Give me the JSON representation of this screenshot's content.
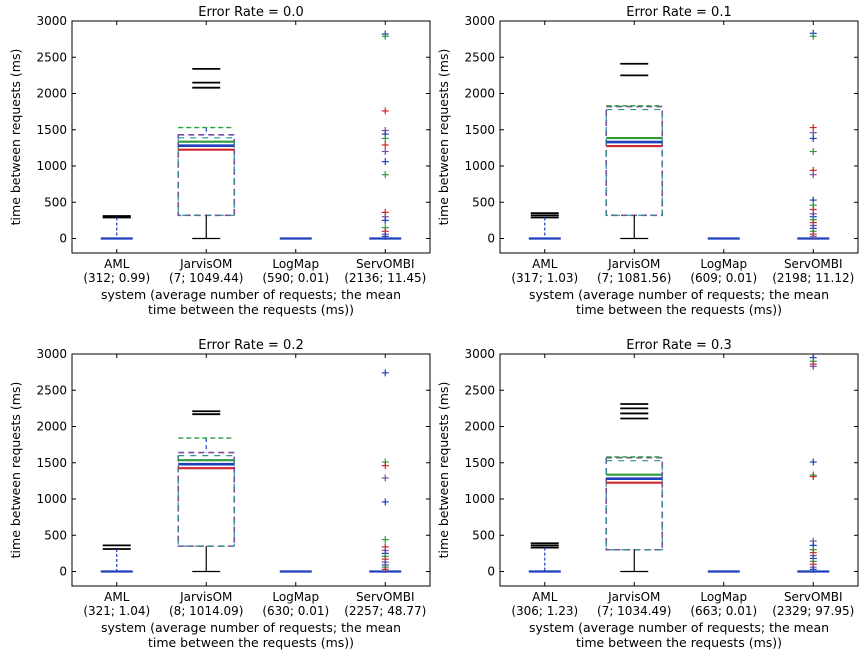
{
  "chart_data": [
    {
      "type": "box",
      "title": "Error Rate = 0.0",
      "ylabel": "time between requests (ms)",
      "xlabel": [
        "system (average number of requests; the mean",
        "time between the requests (ms))"
      ],
      "ylim": [
        -200,
        3000
      ],
      "yticks": [
        0,
        500,
        1000,
        1500,
        2000,
        2500,
        3000
      ],
      "categories": [
        {
          "name": "AML",
          "stats": "(312; 0.99)"
        },
        {
          "name": "JarvisOM",
          "stats": "(7; 1049.44)"
        },
        {
          "name": "LogMap",
          "stats": "(590; 0.01)"
        },
        {
          "name": "ServOMBI",
          "stats": "(2136; 11.45)"
        }
      ],
      "boxes": [
        {
          "q1": 0,
          "median": 0,
          "q3": 0,
          "whisker_low": 0,
          "whisker_high": 0,
          "caps": [
            310,
            300,
            290
          ],
          "fliers": []
        },
        {
          "q1": 320,
          "median": 1280,
          "q3": 1430,
          "whisker_low": 0,
          "whisker_high": 1530,
          "caps": [
            2340,
            2150,
            2080
          ],
          "fliers": []
        },
        {
          "q1": 0,
          "median": 0,
          "q3": 0,
          "whisker_low": 0,
          "whisker_high": 0,
          "caps": [],
          "fliers": []
        },
        {
          "q1": 0,
          "median": 0,
          "q3": 0,
          "whisker_low": 0,
          "whisker_high": 0,
          "caps": [],
          "fliers": [
            2820,
            2790,
            1760,
            1490,
            1440,
            1380,
            1290,
            1200,
            1060,
            880,
            360,
            300,
            250,
            150,
            100,
            60,
            30
          ]
        }
      ]
    },
    {
      "type": "box",
      "title": "Error Rate = 0.1",
      "ylabel": "time between requests (ms)",
      "xlabel": [
        "system (average number of requests; the mean",
        "time between the requests (ms))"
      ],
      "ylim": [
        -200,
        3000
      ],
      "yticks": [
        0,
        500,
        1000,
        1500,
        2000,
        2500,
        3000
      ],
      "categories": [
        {
          "name": "AML",
          "stats": "(317; 1.03)"
        },
        {
          "name": "JarvisOM",
          "stats": "(7; 1081.56)"
        },
        {
          "name": "LogMap",
          "stats": "(609; 0.01)"
        },
        {
          "name": "ServOMBI",
          "stats": "(2198; 11.12)"
        }
      ],
      "boxes": [
        {
          "q1": 0,
          "median": 0,
          "q3": 0,
          "whisker_low": 0,
          "whisker_high": 0,
          "caps": [
            350,
            320,
            290
          ],
          "fliers": []
        },
        {
          "q1": 320,
          "median": 1330,
          "q3": 1820,
          "whisker_low": 0,
          "whisker_high": 1830,
          "caps": [
            2410,
            2250
          ],
          "fliers": []
        },
        {
          "q1": 0,
          "median": 0,
          "q3": 0,
          "whisker_low": 0,
          "whisker_high": 0,
          "caps": [],
          "fliers": []
        },
        {
          "q1": 0,
          "median": 0,
          "q3": 0,
          "whisker_low": 0,
          "whisker_high": 0,
          "caps": [],
          "fliers": [
            2830,
            2790,
            1530,
            1460,
            1380,
            1200,
            940,
            880,
            530,
            460,
            400,
            340,
            300,
            260,
            220,
            180,
            140,
            100,
            60,
            30
          ]
        }
      ]
    },
    {
      "type": "box",
      "title": "Error Rate = 0.2",
      "ylabel": "time between requests (ms)",
      "xlabel": [
        "system (average number of requests; the mean",
        "time between the requests (ms))"
      ],
      "ylim": [
        -200,
        3000
      ],
      "yticks": [
        0,
        500,
        1000,
        1500,
        2000,
        2500,
        3000
      ],
      "categories": [
        {
          "name": "AML",
          "stats": "(321; 1.04)"
        },
        {
          "name": "JarvisOM",
          "stats": "(8; 1014.09)"
        },
        {
          "name": "LogMap",
          "stats": "(630; 0.01)"
        },
        {
          "name": "ServOMBI",
          "stats": "(2257; 48.77)"
        }
      ],
      "boxes": [
        {
          "q1": 0,
          "median": 0,
          "q3": 0,
          "whisker_low": 0,
          "whisker_high": 0,
          "caps": [
            360,
            310
          ],
          "fliers": []
        },
        {
          "q1": 350,
          "median": 1480,
          "q3": 1640,
          "whisker_low": 0,
          "whisker_high": 1840,
          "caps": [
            2210,
            2170
          ],
          "fliers": []
        },
        {
          "q1": 0,
          "median": 0,
          "q3": 0,
          "whisker_low": 0,
          "whisker_high": 0,
          "caps": [],
          "fliers": []
        },
        {
          "q1": 0,
          "median": 0,
          "q3": 0,
          "whisker_low": 0,
          "whisker_high": 0,
          "caps": [],
          "fliers": [
            2740,
            1510,
            1460,
            1290,
            960,
            440,
            340,
            290,
            250,
            210,
            170,
            130,
            90,
            60,
            30
          ]
        }
      ]
    },
    {
      "type": "box",
      "title": "Error Rate = 0.3",
      "ylabel": "time between requests (ms)",
      "xlabel": [
        "system (average number of requests; the mean",
        "time between the requests (ms))"
      ],
      "ylim": [
        -200,
        3000
      ],
      "yticks": [
        0,
        500,
        1000,
        1500,
        2000,
        2500,
        3000
      ],
      "categories": [
        {
          "name": "AML",
          "stats": "(306; 1.23)"
        },
        {
          "name": "JarvisOM",
          "stats": "(7; 1034.49)"
        },
        {
          "name": "LogMap",
          "stats": "(663; 0.01)"
        },
        {
          "name": "ServOMBI",
          "stats": "(2329; 97.95)"
        }
      ],
      "boxes": [
        {
          "q1": 0,
          "median": 0,
          "q3": 0,
          "whisker_low": 0,
          "whisker_high": 0,
          "caps": [
            390,
            360,
            330
          ],
          "fliers": []
        },
        {
          "q1": 300,
          "median": 1280,
          "q3": 1570,
          "whisker_low": 0,
          "whisker_high": 1580,
          "caps": [
            2310,
            2250,
            2180,
            2110
          ],
          "fliers": []
        },
        {
          "q1": 0,
          "median": 0,
          "q3": 0,
          "whisker_low": 0,
          "whisker_high": 0,
          "caps": [],
          "fliers": []
        },
        {
          "q1": 0,
          "median": 0,
          "q3": 0,
          "whisker_low": 0,
          "whisker_high": 0,
          "caps": [],
          "fliers": [
            2950,
            2900,
            2860,
            2830,
            1510,
            1330,
            1310,
            420,
            360,
            300,
            260,
            220,
            180,
            140,
            100,
            60,
            30
          ]
        }
      ]
    }
  ],
  "colors": {
    "blue": "#1f3fbf",
    "green": "#2a9a3a",
    "red": "#d0262e",
    "purple": "#7a4fa0",
    "teal": "#2f8f8f"
  }
}
